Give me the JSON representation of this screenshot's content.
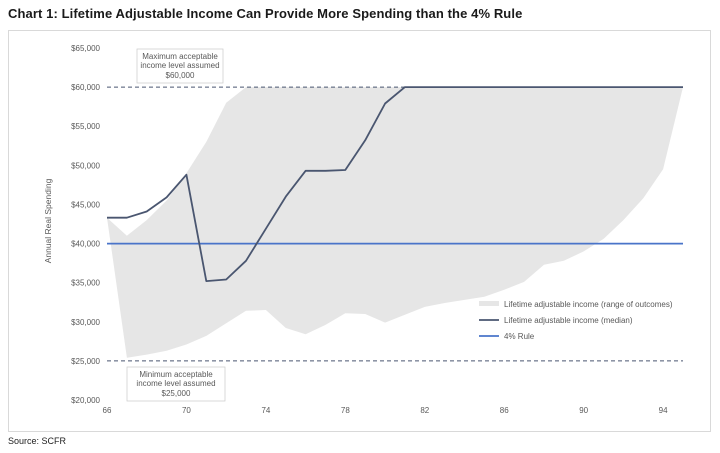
{
  "header": {
    "title": "Chart 1: Lifetime Adjustable Income Can Provide More Spending than the 4% Rule"
  },
  "footer": {
    "source": "Source: SCFR"
  },
  "chart_data": {
    "type": "line",
    "title": "Chart 1: Lifetime Adjustable Income Can Provide More Spending than the 4% Rule",
    "xlabel": "",
    "ylabel": "Annual Real Spending",
    "xlim": [
      66,
      95
    ],
    "ylim": [
      20000,
      65000
    ],
    "x_ticks": [
      66,
      70,
      74,
      78,
      82,
      86,
      90,
      94
    ],
    "y_ticks": [
      20000,
      25000,
      30000,
      35000,
      40000,
      45000,
      50000,
      55000,
      60000,
      65000
    ],
    "y_tick_labels": [
      "$20,000",
      "$25,000",
      "$30,000",
      "$35,000",
      "$40,000",
      "$45,000",
      "$50,000",
      "$55,000",
      "$60,000",
      "$65,000"
    ],
    "series": [
      {
        "name": "Lifetime adjustable income (range of outcomes)",
        "kind": "band",
        "color": "#e6e6e6",
        "x": [
          66,
          67,
          68,
          69,
          70,
          71,
          72,
          73,
          74,
          75,
          76,
          77,
          78,
          79,
          80,
          81,
          82,
          83,
          84,
          85,
          86,
          87,
          88,
          89,
          90,
          91,
          92,
          93,
          94,
          95
        ],
        "lower": [
          43300,
          25400,
          25800,
          26300,
          27100,
          28200,
          29800,
          31400,
          31500,
          29200,
          28400,
          29600,
          31100,
          31000,
          29900,
          30900,
          31900,
          32400,
          32800,
          33200,
          34100,
          35100,
          37300,
          37800,
          39000,
          40600,
          43000,
          45800,
          49500,
          60000
        ],
        "upper": [
          43300,
          41000,
          43000,
          45500,
          49000,
          53000,
          58000,
          60000,
          60000,
          60000,
          60000,
          60000,
          60000,
          60000,
          60000,
          60000,
          60000,
          60000,
          60000,
          60000,
          60000,
          60000,
          60000,
          60000,
          60000,
          60000,
          60000,
          60000,
          60000,
          60000
        ]
      },
      {
        "name": "Lifetime adjustable income (median)",
        "kind": "line",
        "color": "#4a5670",
        "x": [
          66,
          67,
          68,
          69,
          70,
          71,
          72,
          73,
          74,
          75,
          76,
          77,
          78,
          79,
          80,
          81,
          82,
          83,
          84,
          85,
          86,
          87,
          88,
          89,
          90,
          91,
          92,
          93,
          94,
          95
        ],
        "values": [
          43300,
          43300,
          44100,
          45900,
          48800,
          35200,
          35400,
          37800,
          41900,
          46000,
          49300,
          49300,
          49400,
          53200,
          57900,
          60000,
          60000,
          60000,
          60000,
          60000,
          60000,
          60000,
          60000,
          60000,
          60000,
          60000,
          60000,
          60000,
          60000,
          60000
        ]
      },
      {
        "name": "4% Rule",
        "kind": "line",
        "color": "#4a74c9",
        "x": [
          66,
          95
        ],
        "values": [
          40000,
          40000
        ]
      }
    ],
    "reference_lines": [
      {
        "name": "max",
        "y": 60000,
        "style": "dashed",
        "color": "#4a5670"
      },
      {
        "name": "min",
        "y": 25000,
        "style": "dashed",
        "color": "#4a5670"
      }
    ],
    "annotations": {
      "max": [
        "Maximum acceptable",
        "income level assumed",
        "$60,000"
      ],
      "min": [
        "Minimum acceptable",
        "income level assumed",
        "$25,000"
      ]
    },
    "legend": {
      "position": "bottom-right",
      "entries": [
        "Lifetime adjustable income (range of outcomes)",
        "Lifetime adjustable income (median)",
        "4% Rule"
      ]
    }
  }
}
